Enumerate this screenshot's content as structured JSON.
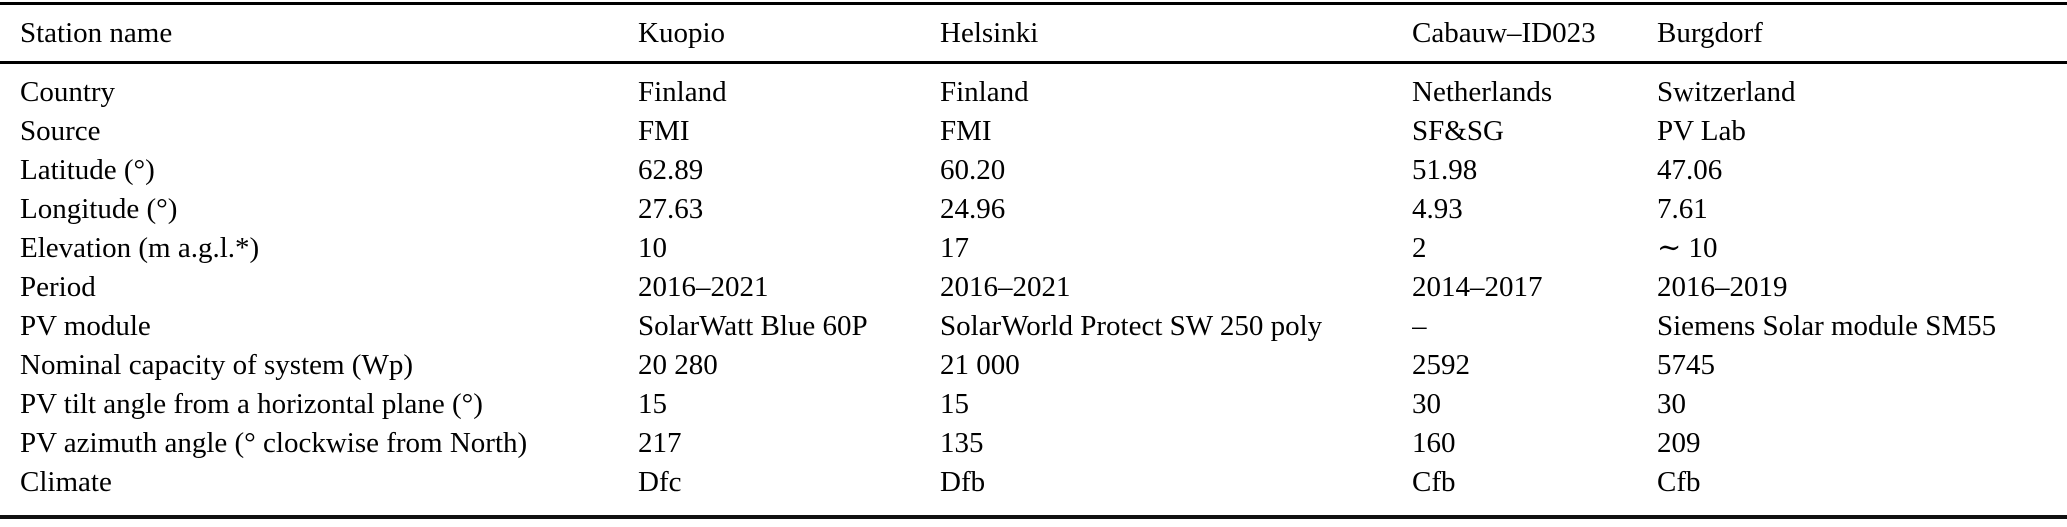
{
  "colors": {
    "background": "#ffffff",
    "text": "#000000",
    "rule": "#000000"
  },
  "table": {
    "header": [
      "Station name",
      "Kuopio",
      "Helsinki",
      "Cabauw–ID023",
      "Burgdorf"
    ],
    "rows": [
      {
        "label": "Country",
        "values": [
          "Finland",
          "Finland",
          "Netherlands",
          "Switzerland"
        ]
      },
      {
        "label": "Source",
        "values": [
          "FMI",
          "FMI",
          "SF&SG",
          "PV Lab"
        ]
      },
      {
        "label": "Latitude (°)",
        "values": [
          "62.89",
          "60.20",
          "51.98",
          "47.06"
        ]
      },
      {
        "label": "Longitude (°)",
        "values": [
          "27.63",
          "24.96",
          "4.93",
          "7.61"
        ]
      },
      {
        "label": "Elevation (m a.g.l.*)",
        "values": [
          "10",
          "17",
          "2",
          "∼ 10"
        ]
      },
      {
        "label": "Period",
        "values": [
          "2016–2021",
          "2016–2021",
          "2014–2017",
          "2016–2019"
        ]
      },
      {
        "label": "PV module",
        "values": [
          "SolarWatt Blue 60P",
          "SolarWorld Protect SW 250 poly",
          "–",
          "Siemens Solar module SM55"
        ]
      },
      {
        "label": "Nominal capacity of system (Wp)",
        "values": [
          "20 280",
          "21 000",
          "2592",
          "5745"
        ]
      },
      {
        "label": "PV tilt angle from a horizontal plane (°)",
        "values": [
          "15",
          "15",
          "30",
          "30"
        ]
      },
      {
        "label": "PV azimuth angle (° clockwise from North)",
        "values": [
          "217",
          "135",
          "160",
          "209"
        ]
      },
      {
        "label": "Climate",
        "values": [
          "Dfc",
          "Dfb",
          "Cfb",
          "Cfb"
        ]
      }
    ]
  }
}
